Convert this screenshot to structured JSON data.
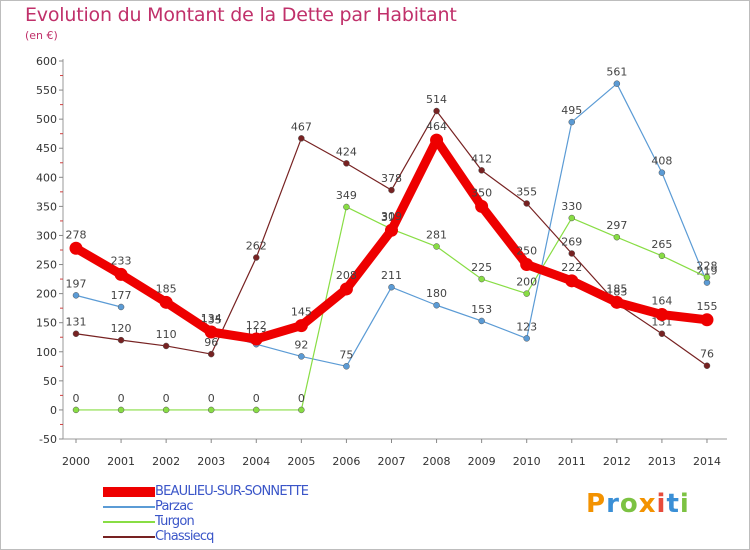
{
  "chart_data": {
    "type": "line",
    "title": "Evolution du Montant de la Dette par Habitant",
    "unit": "(en €)",
    "x": [
      "2000",
      "2001",
      "2002",
      "2003",
      "2004",
      "2005",
      "2006",
      "2007",
      "2008",
      "2009",
      "2010",
      "2011",
      "2012",
      "2013",
      "2014"
    ],
    "ylim": [
      -50,
      600
    ],
    "yticks": [
      -50,
      0,
      50,
      100,
      150,
      200,
      250,
      300,
      350,
      400,
      450,
      500,
      550,
      600
    ],
    "grid": false,
    "legend_position": "bottom-left",
    "series": [
      {
        "name": "BEAULIEU-SUR-SONNETTE",
        "color": "#ee0000",
        "values": [
          278,
          233,
          185,
          134,
          122,
          145,
          208,
          309,
          464,
          350,
          250,
          222,
          185,
          164,
          155
        ]
      },
      {
        "name": "Parzac",
        "color": "#5b9bd5",
        "values": [
          197,
          177,
          null,
          135,
          113,
          92,
          75,
          211,
          180,
          153,
          123,
          495,
          561,
          408,
          219
        ]
      },
      {
        "name": "Turgon",
        "color": "#88dd44",
        "values": [
          0,
          0,
          0,
          0,
          0,
          0,
          349,
          311,
          281,
          225,
          200,
          330,
          297,
          265,
          228
        ]
      },
      {
        "name": "Chassiecq",
        "color": "#772222",
        "values": [
          131,
          120,
          110,
          96,
          262,
          467,
          424,
          378,
          514,
          412,
          355,
          269,
          183,
          131,
          76
        ]
      }
    ]
  },
  "brand": {
    "text": "Proxiti",
    "colors": [
      "#f39200",
      "#3a8fd6",
      "#7cc242",
      "#f39200",
      "#e74c3c",
      "#3a8fd6",
      "#7cc242"
    ]
  }
}
